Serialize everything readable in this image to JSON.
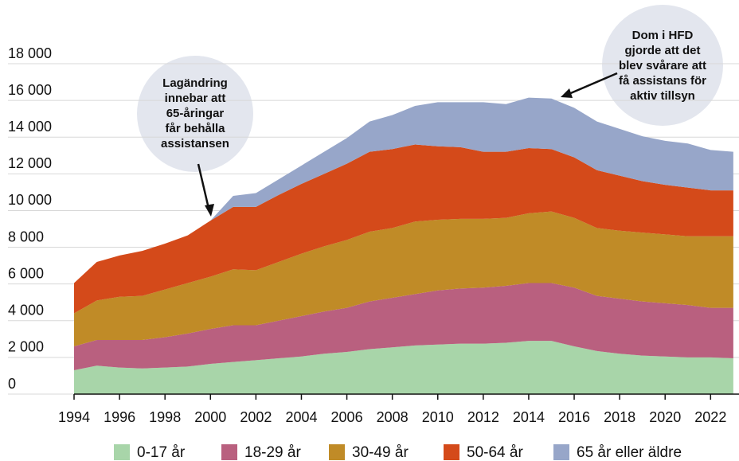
{
  "chart_data": {
    "type": "stacked_area",
    "x": [
      1994,
      1995,
      1996,
      1997,
      1998,
      1999,
      2000,
      2001,
      2002,
      2003,
      2004,
      2005,
      2006,
      2007,
      2008,
      2009,
      2010,
      2011,
      2012,
      2013,
      2014,
      2015,
      2016,
      2017,
      2018,
      2019,
      2020,
      2021,
      2022,
      2023
    ],
    "series": [
      {
        "name": "0-17 år",
        "color": "#a8d5a9",
        "values": [
          1300,
          1550,
          1450,
          1400,
          1450,
          1500,
          1650,
          1750,
          1850,
          1950,
          2050,
          2200,
          2300,
          2450,
          2550,
          2650,
          2700,
          2750,
          2750,
          2800,
          2900,
          2900,
          2600,
          2350,
          2200,
          2100,
          2050,
          2000,
          2000,
          1950
        ]
      },
      {
        "name": "18-29 år",
        "color": "#b9607f",
        "values": [
          1300,
          1400,
          1500,
          1550,
          1650,
          1800,
          1900,
          2000,
          1900,
          2050,
          2200,
          2300,
          2400,
          2600,
          2700,
          2800,
          2950,
          3000,
          3050,
          3100,
          3150,
          3150,
          3200,
          3000,
          3000,
          2950,
          2900,
          2850,
          2700,
          2750
        ]
      },
      {
        "name": "30-49 år",
        "color": "#c08b27",
        "values": [
          1800,
          2150,
          2350,
          2400,
          2600,
          2750,
          2850,
          3050,
          3000,
          3200,
          3400,
          3550,
          3700,
          3800,
          3800,
          3950,
          3850,
          3800,
          3750,
          3700,
          3800,
          3900,
          3800,
          3700,
          3700,
          3750,
          3750,
          3750,
          3900,
          3900
        ]
      },
      {
        "name": "50-64 år",
        "color": "#d44a1a",
        "values": [
          1650,
          2100,
          2250,
          2450,
          2500,
          2600,
          3050,
          3400,
          3450,
          3650,
          3800,
          3950,
          4150,
          4350,
          4300,
          4200,
          4000,
          3900,
          3650,
          3600,
          3550,
          3400,
          3300,
          3150,
          3000,
          2800,
          2700,
          2650,
          2500,
          2500
        ]
      },
      {
        "name": "65 år eller äldre",
        "color": "#97a6c9",
        "values": [
          0,
          0,
          0,
          0,
          0,
          0,
          0,
          600,
          750,
          850,
          1000,
          1200,
          1400,
          1650,
          1850,
          2100,
          2400,
          2450,
          2700,
          2600,
          2750,
          2750,
          2700,
          2650,
          2550,
          2450,
          2400,
          2400,
          2200,
          2100
        ]
      }
    ],
    "xlim": [
      1994,
      2023.25
    ],
    "xticks": [
      1994,
      1996,
      1998,
      2000,
      2002,
      2004,
      2006,
      2008,
      2010,
      2012,
      2014,
      2016,
      2018,
      2020,
      2022
    ],
    "ylim": [
      0,
      18000
    ],
    "yticks": [
      0,
      {
        "value": 2000,
        "label": "2 000"
      },
      {
        "value": 4000,
        "label": "4 000"
      },
      {
        "value": 6000,
        "label": "6 000"
      },
      {
        "value": 8000,
        "label": "8 000"
      },
      {
        "value": 10000,
        "label": "10 000"
      },
      {
        "value": 12000,
        "label": "12 000"
      },
      {
        "value": 14000,
        "label": "14 000"
      },
      {
        "value": 16000,
        "label": "16 000"
      },
      {
        "value": 18000,
        "label": "18 000"
      }
    ],
    "grid": true,
    "legend": "bottom",
    "annotations": [
      {
        "lines": [
          "Lagändring",
          "innebar att",
          "65-åringar",
          "får behålla",
          "assistansen"
        ]
      },
      {
        "lines": [
          "Dom i HFD",
          "gjorde att det",
          "blev svårare att",
          "få assistans för",
          "aktiv tillsyn"
        ]
      }
    ]
  }
}
